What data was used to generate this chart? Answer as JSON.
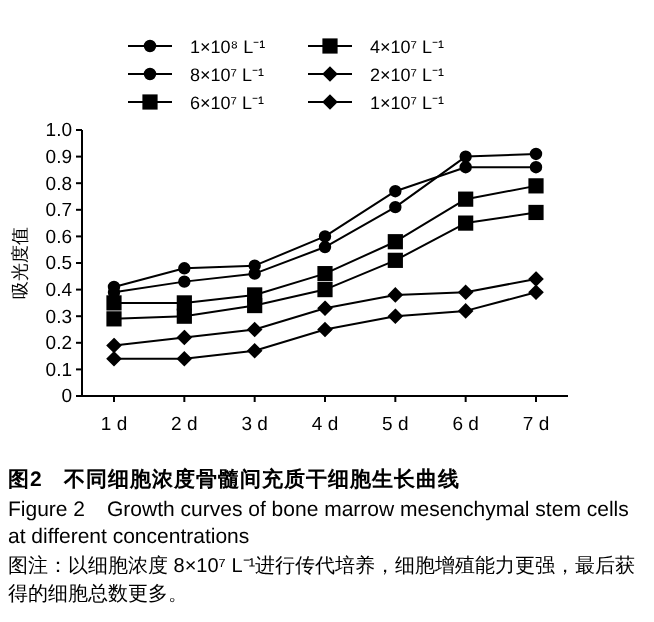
{
  "chart_data": {
    "type": "line",
    "title": "图2　不同细胞浓度骨髓间充质干细胞生长曲线",
    "subtitle": "Figure 2　Growth curves of bone marrow mesenchymal stem cells at different concentrations",
    "ylabel": "吸光度值",
    "annotations": [
      "图注：以细胞浓度 8×10⁷ L⁻¹进行传代培养，细胞增殖能力更强，最后获得的细胞总数更多。"
    ],
    "categories": [
      "1 d",
      "2 d",
      "3 d",
      "4 d",
      "5 d",
      "6 d",
      "7 d"
    ],
    "ylim": [
      0,
      1.0
    ],
    "yticks": [
      0,
      0.1,
      0.2,
      0.3,
      0.4,
      0.5,
      0.6,
      0.7,
      0.8,
      0.9,
      {
        "value": 1.0,
        "label": "1.0"
      }
    ],
    "grid": false,
    "legend": "top",
    "line_style": "solid",
    "series": [
      {
        "name": "1×10⁸ L⁻¹",
        "color": "#000000",
        "marker": "circle",
        "values": [
          0.41,
          0.48,
          0.49,
          0.6,
          0.77,
          0.86,
          0.86
        ]
      },
      {
        "name": "4×10⁷ L⁻¹",
        "color": "#000000",
        "marker": "square",
        "values": [
          0.29,
          0.3,
          0.34,
          0.4,
          0.51,
          0.65,
          0.69
        ]
      },
      {
        "name": "8×10⁷ L⁻¹",
        "color": "#000000",
        "marker": "circle",
        "values": [
          0.39,
          0.43,
          0.46,
          0.56,
          0.71,
          0.9,
          0.91
        ]
      },
      {
        "name": "2×10⁷ L⁻¹",
        "color": "#000000",
        "marker": "diamond",
        "values": [
          0.19,
          0.22,
          0.25,
          0.33,
          0.38,
          0.39,
          0.44
        ]
      },
      {
        "name": "6×10⁷ L⁻¹",
        "color": "#000000",
        "marker": "square",
        "values": [
          0.35,
          0.35,
          0.38,
          0.46,
          0.58,
          0.74,
          0.79
        ]
      },
      {
        "name": "1×10⁷ L⁻¹",
        "color": "#000000",
        "marker": "diamond",
        "values": [
          0.14,
          0.14,
          0.17,
          0.25,
          0.3,
          0.32,
          0.39
        ]
      }
    ]
  }
}
